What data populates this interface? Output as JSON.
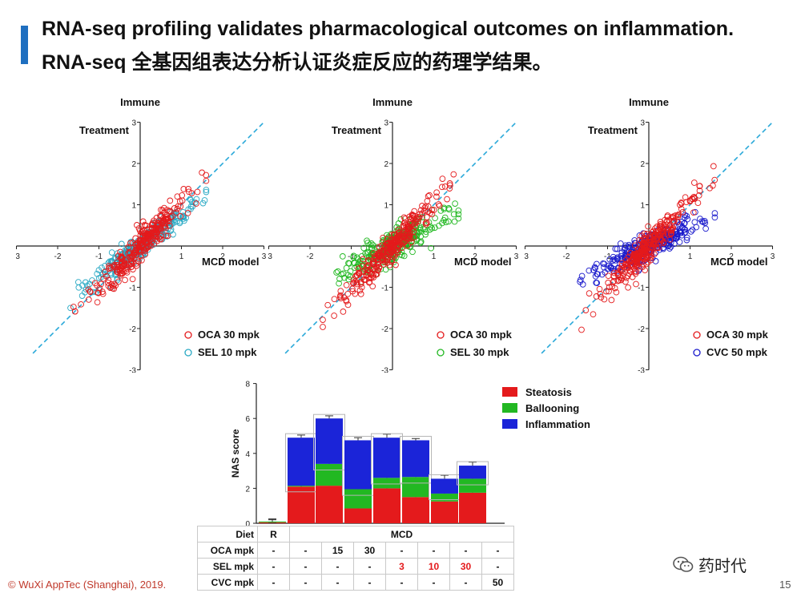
{
  "slide": {
    "title_en": "RNA-seq profiling validates pharmacological outcomes on inflammation.",
    "title_cn": "RNA-seq 全基因组表达分析认证炎症反应的药理学结果。",
    "copyright": "© WuXi AppTec (Shanghai), 2019.",
    "page_number": "15",
    "watermark": "药时代"
  },
  "colors": {
    "accent": "#1f6fc0",
    "oca": "#e41a1c",
    "sel10": "#2aa9c4",
    "sel30": "#22b822",
    "cvc": "#1a1acc",
    "diagonal": "#2aa9d9",
    "steatosis": "#e41a1c",
    "ballooning": "#22b822",
    "inflammation": "#1b24d8"
  },
  "chart_data": [
    {
      "type": "scatter",
      "title": "Immune",
      "xlabel": "MCD model",
      "ylabel": "Treatment",
      "xlim": [
        -3,
        3
      ],
      "ylim": [
        -3,
        3
      ],
      "ticks": [
        "-3",
        "-2",
        "-1",
        "1",
        "2",
        "3"
      ],
      "reference_line": "y = x",
      "series": [
        {
          "name": "OCA 30 mpk",
          "color": "#e41a1c",
          "slope": 1.05,
          "spread": 0.18
        },
        {
          "name": "SEL 10 mpk",
          "color": "#2aa9c4",
          "slope": 0.75,
          "spread": 0.14
        }
      ]
    },
    {
      "type": "scatter",
      "title": "Immune",
      "xlabel": "MCD model",
      "ylabel": "Treatment",
      "xlim": [
        -3,
        3
      ],
      "ylim": [
        -3,
        3
      ],
      "ticks": [
        "-3",
        "-2",
        "-1",
        "1",
        "2",
        "3"
      ],
      "reference_line": "y = x",
      "series": [
        {
          "name": "OCA 30 mpk",
          "color": "#e41a1c",
          "slope": 1.05,
          "spread": 0.18
        },
        {
          "name": "SEL 30 mpk",
          "color": "#22b822",
          "slope": 0.55,
          "spread": 0.18
        }
      ]
    },
    {
      "type": "scatter",
      "title": "Immune",
      "xlabel": "MCD model",
      "ylabel": "Treatment",
      "xlim": [
        -3,
        3
      ],
      "ylim": [
        -3,
        3
      ],
      "ticks": [
        "-3",
        "-2",
        "-1",
        "1",
        "2",
        "3"
      ],
      "reference_line": "y = x",
      "series": [
        {
          "name": "OCA 30 mpk",
          "color": "#e41a1c",
          "slope": 1.05,
          "spread": 0.18
        },
        {
          "name": "CVC 50 mpk",
          "color": "#1a1acc",
          "slope": 0.5,
          "spread": 0.16
        }
      ]
    },
    {
      "type": "bar",
      "stacked": true,
      "ylabel": "NAS score",
      "ylim": [
        0,
        8
      ],
      "yticks": [
        "0",
        "2",
        "4",
        "6",
        "8"
      ],
      "legend_position": "top-right",
      "series": [
        {
          "name": "Steatosis",
          "color": "#e41a1c",
          "values": [
            0.05,
            2.1,
            2.15,
            0.85,
            2.0,
            1.5,
            1.25,
            1.75
          ],
          "errors": [
            0,
            0.15,
            0.2,
            0.3,
            0.15,
            0.3,
            0.15,
            0.25
          ]
        },
        {
          "name": "Ballooning",
          "color": "#22b822",
          "values": [
            0.05,
            0.05,
            1.25,
            1.1,
            0.6,
            1.15,
            0.45,
            0.8
          ],
          "errors": [
            0.1,
            0.1,
            0.3,
            0.35,
            0.15,
            0.35,
            0.1,
            0.25
          ]
        },
        {
          "name": "Inflammation",
          "color": "#1b24d8",
          "values": [
            0.0,
            2.75,
            2.6,
            2.8,
            2.3,
            2.1,
            0.85,
            0.75
          ],
          "errors": [
            0.15,
            0.15,
            0.15,
            0.15,
            0.2,
            0.1,
            0.2,
            0.2
          ]
        }
      ],
      "table": {
        "rows": [
          {
            "label": "Diet",
            "cells": [
              "R",
              "MCD"
            ]
          },
          {
            "label": "OCA mpk",
            "cells": [
              "-",
              "-",
              "15",
              "30",
              "-",
              "-",
              "-",
              "-"
            ]
          },
          {
            "label": "SEL mpk",
            "cells": [
              "-",
              "-",
              "-",
              "-",
              "3",
              "10",
              "30",
              "-"
            ]
          },
          {
            "label": "CVC mpk",
            "cells": [
              "-",
              "-",
              "-",
              "-",
              "-",
              "-",
              "-",
              "50"
            ]
          }
        ]
      }
    }
  ]
}
